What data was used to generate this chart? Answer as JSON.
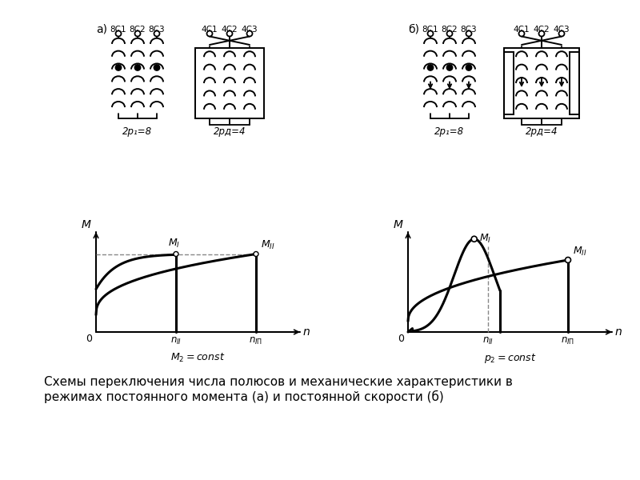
{
  "bg_color": "#ffffff",
  "line_color": "#000000",
  "caption": "Схемы переключения числа полюсов и механические характеристики в\nрежимах постоянного момента (а) и постоянной скорости (б)",
  "label_a": "а)",
  "label_b": "б)",
  "labels_8c": [
    "8С1",
    "8С2",
    "8С3"
  ],
  "labels_4c": [
    "4С1",
    "4С2",
    "4С3"
  ],
  "label_8p_a": "2p₁=8",
  "label_4p_a": "2pд=4",
  "label_8p_b": "2p₁=8",
  "label_4p_b": "2pд=4",
  "fig_width": 8.0,
  "fig_height": 6.0,
  "dpi": 100
}
